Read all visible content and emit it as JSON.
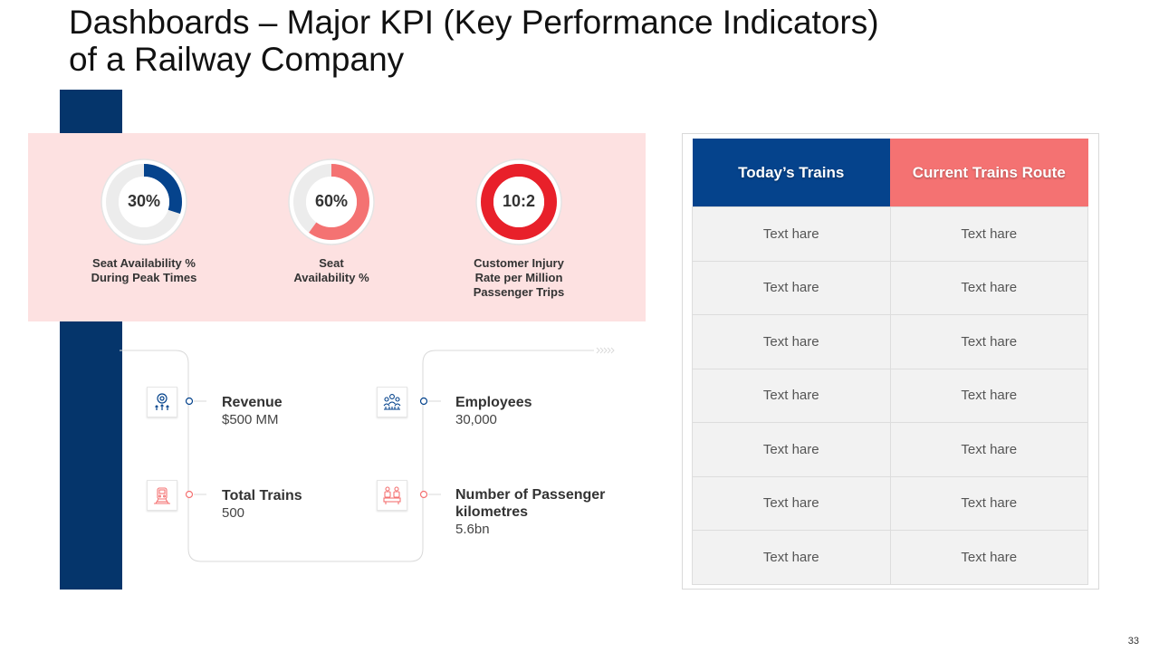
{
  "title": {
    "line1": "Dashboards – Major KPI (Key Performance Indicators)",
    "line2": "of a Railway Company"
  },
  "gauges": [
    {
      "value": "30%",
      "fraction": 0.3,
      "color": "#05438c",
      "caption_lines": [
        "Seat Availability %",
        "During Peak Times"
      ]
    },
    {
      "value": "60%",
      "fraction": 0.6,
      "color": "#f47272",
      "caption_lines": [
        "Seat",
        "Availability %"
      ]
    },
    {
      "value": "10:2",
      "fraction": 1.0,
      "color": "#e8202a",
      "caption_lines": [
        "Customer Injury",
        "Rate per Million",
        "Passenger Trips"
      ]
    }
  ],
  "kpis": [
    {
      "label": "Revenue",
      "value": "$500 MM",
      "icon": "revenue-icon"
    },
    {
      "label": "Employees",
      "value": "30,000",
      "icon": "employees-icon"
    },
    {
      "label": "Total Trains",
      "value": "500",
      "icon": "train-icon"
    },
    {
      "label_lines": [
        "Number of Passenger",
        "kilometres"
      ],
      "value": "5.6bn",
      "icon": "passengers-icon"
    }
  ],
  "table": {
    "headers": [
      "Today’s Trains",
      "Current Trains Route"
    ],
    "rows": [
      [
        "Text hare",
        "Text hare"
      ],
      [
        "Text hare",
        "Text hare"
      ],
      [
        "Text hare",
        "Text hare"
      ],
      [
        "Text hare",
        "Text hare"
      ],
      [
        "Text hare",
        "Text hare"
      ],
      [
        "Text hare",
        "Text hare"
      ],
      [
        "Text hare",
        "Text hare"
      ]
    ]
  },
  "colors": {
    "navy": "#05356b",
    "blue": "#05438c",
    "coral": "#f47272",
    "red": "#e8202a",
    "pink_bg": "#fde1e1"
  },
  "page_number": "33"
}
